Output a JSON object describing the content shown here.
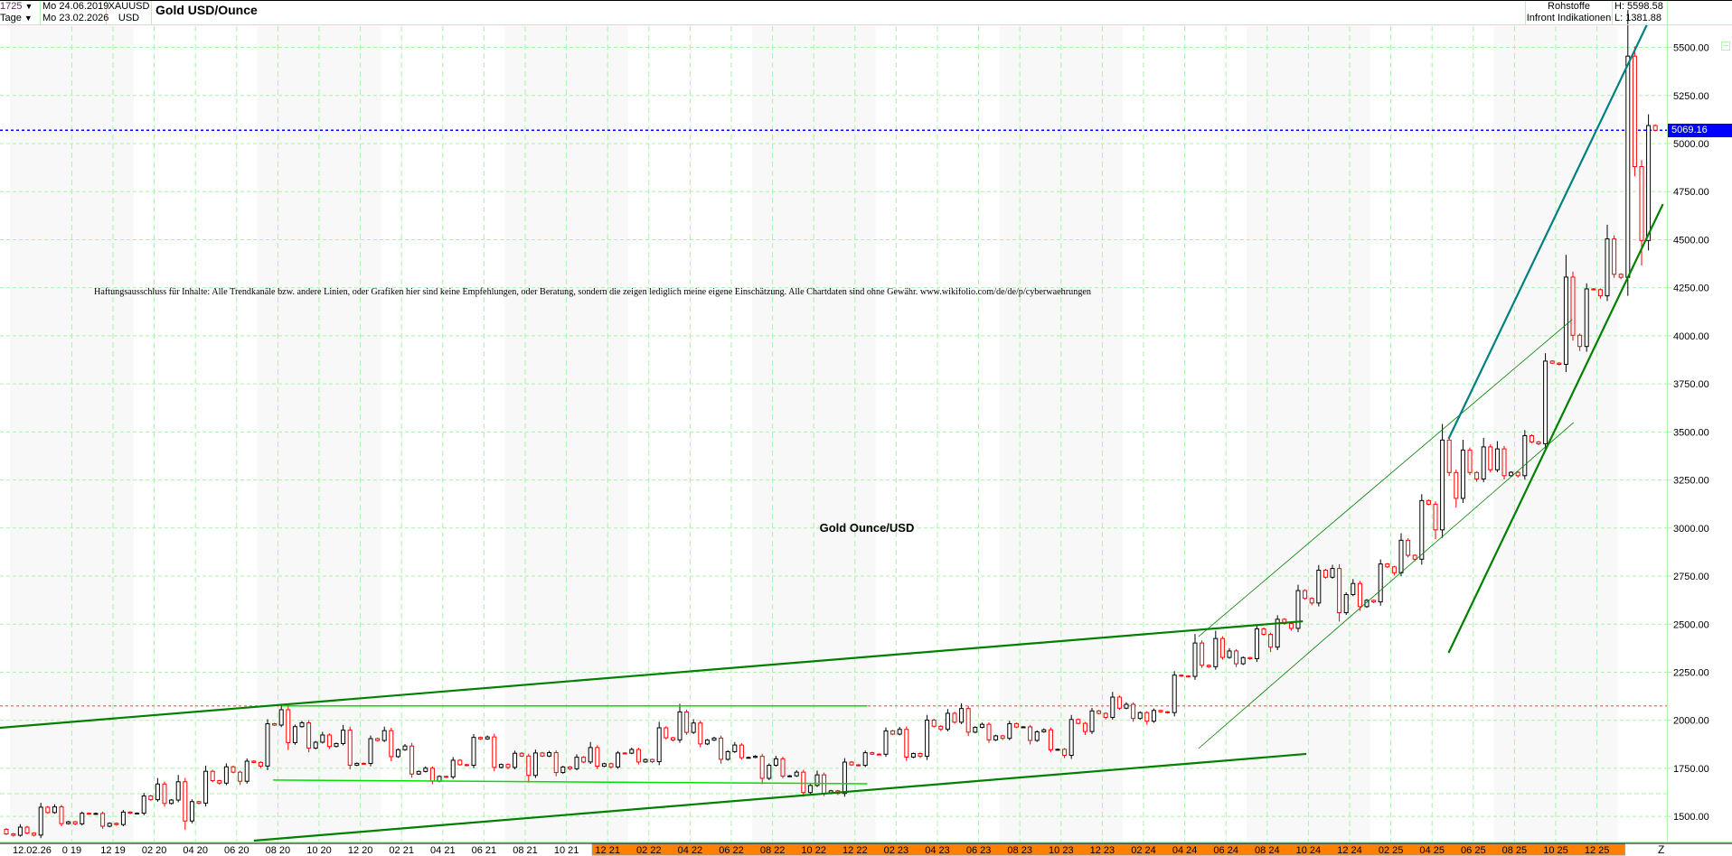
{
  "header": {
    "bar_count": "1725",
    "period": "Tage",
    "start_date": "Mo 24.06.2019",
    "end_date": "Mo 23.02.2026",
    "symbol": "XAUUSD",
    "currency": "USD",
    "title": "Gold USD/Ounce",
    "category": "Rohstoffe",
    "source": "Infront Indikationen",
    "high": "H: 5598.58",
    "low": "L: 1381.88"
  },
  "disclaimer": "Haftungsausschluss für Inhalte: Alle Trendkanäle bzw. andere Linien, oder Grafiken hier sind keine Empfehlungen, oder Beratung, sondern die zeigen lediglich meine eigene Einschätzung. Alle Chartdaten sind ohne Gewähr.  www.wikifolio.com/de/de/p/cyberwaehrungen",
  "chart_label": "Gold Ounce/USD",
  "last_price_tag": "5069.16",
  "x_axis_start_label": "12.02.26",
  "x_axis_end_label": "Z",
  "chart_data": {
    "type": "candlestick",
    "title": "Gold USD/Ounce",
    "ylim": [
      1381.88,
      5598.58
    ],
    "y_ticks": [
      "1500.00",
      "1750.00",
      "2000.00",
      "2250.00",
      "2500.00",
      "2750.00",
      "3000.00",
      "3250.00",
      "3500.00",
      "3750.00",
      "4000.00",
      "4250.00",
      "4500.00",
      "4750.00",
      "5000.00",
      "5250.00",
      "5500.00"
    ],
    "x_ticks": [
      {
        "date": "2019-10-01",
        "label": "0 19"
      },
      {
        "date": "2019-12-01",
        "label": "12 19"
      },
      {
        "date": "2020-02-01",
        "label": "02 20"
      },
      {
        "date": "2020-04-01",
        "label": "04 20"
      },
      {
        "date": "2020-06-01",
        "label": "06 20"
      },
      {
        "date": "2020-08-01",
        "label": "08 20"
      },
      {
        "date": "2020-10-01",
        "label": "10 20"
      },
      {
        "date": "2020-12-01",
        "label": "12 20"
      },
      {
        "date": "2021-02-01",
        "label": "02 21"
      },
      {
        "date": "2021-04-01",
        "label": "04 21"
      },
      {
        "date": "2021-06-01",
        "label": "06 21"
      },
      {
        "date": "2021-08-01",
        "label": "08 21"
      },
      {
        "date": "2021-10-01",
        "label": "10 21"
      },
      {
        "date": "2021-12-01",
        "label": "12 21"
      },
      {
        "date": "2022-02-01",
        "label": "02 22"
      },
      {
        "date": "2022-04-01",
        "label": "04 22"
      },
      {
        "date": "2022-06-01",
        "label": "06 22"
      },
      {
        "date": "2022-08-01",
        "label": "08 22"
      },
      {
        "date": "2022-10-01",
        "label": "10 22"
      },
      {
        "date": "2022-12-01",
        "label": "12 22"
      },
      {
        "date": "2023-02-01",
        "label": "02 23"
      },
      {
        "date": "2023-04-01",
        "label": "04 23"
      },
      {
        "date": "2023-06-01",
        "label": "06 23"
      },
      {
        "date": "2023-08-01",
        "label": "08 23"
      },
      {
        "date": "2023-10-01",
        "label": "10 23"
      },
      {
        "date": "2023-12-01",
        "label": "12 23"
      },
      {
        "date": "2024-02-01",
        "label": "02 24"
      },
      {
        "date": "2024-04-01",
        "label": "04 24"
      },
      {
        "date": "2024-06-01",
        "label": "06 24"
      },
      {
        "date": "2024-08-01",
        "label": "08 24"
      },
      {
        "date": "2024-10-01",
        "label": "10 24"
      },
      {
        "date": "2024-12-01",
        "label": "12 24"
      },
      {
        "date": "2025-02-01",
        "label": "02 25"
      },
      {
        "date": "2025-04-01",
        "label": "04 25"
      },
      {
        "date": "2025-06-01",
        "label": "06 25"
      },
      {
        "date": "2025-08-01",
        "label": "08 25"
      },
      {
        "date": "2025-10-01",
        "label": "10 25"
      },
      {
        "date": "2025-12-01",
        "label": "12 25"
      }
    ],
    "highlighted_x_range": [
      "2021-12-01",
      "2025-12-31"
    ],
    "grid": true,
    "colors": {
      "up": "#000000",
      "down": "#ff0000",
      "grid": "#a8f5a8",
      "band": "#f8f8f8",
      "trend": "#008000",
      "trend_light": "#00e000",
      "teal": "#008080",
      "last": "#0000ff",
      "resistance": "#f08080",
      "axis_highlight": "#ff8000"
    },
    "monthly_ohlc": [
      {
        "m": "2019-06",
        "o": 1400,
        "h": 1439,
        "l": 1382,
        "c": 1409
      },
      {
        "m": "2019-07",
        "o": 1409,
        "h": 1452,
        "l": 1400,
        "c": 1413
      },
      {
        "m": "2019-08",
        "o": 1413,
        "h": 1555,
        "l": 1400,
        "c": 1520
      },
      {
        "m": "2019-09",
        "o": 1520,
        "h": 1557,
        "l": 1460,
        "c": 1472
      },
      {
        "m": "2019-10",
        "o": 1472,
        "h": 1517,
        "l": 1459,
        "c": 1513
      },
      {
        "m": "2019-11",
        "o": 1513,
        "h": 1516,
        "l": 1445,
        "c": 1464
      },
      {
        "m": "2019-12",
        "o": 1464,
        "h": 1524,
        "l": 1456,
        "c": 1517
      },
      {
        "m": "2020-01",
        "o": 1517,
        "h": 1611,
        "l": 1517,
        "c": 1587
      },
      {
        "m": "2020-02",
        "o": 1587,
        "h": 1689,
        "l": 1563,
        "c": 1585
      },
      {
        "m": "2020-03",
        "o": 1585,
        "h": 1704,
        "l": 1451,
        "c": 1577
      },
      {
        "m": "2020-04",
        "o": 1577,
        "h": 1747,
        "l": 1567,
        "c": 1686
      },
      {
        "m": "2020-05",
        "o": 1686,
        "h": 1765,
        "l": 1670,
        "c": 1730
      },
      {
        "m": "2020-06",
        "o": 1730,
        "h": 1789,
        "l": 1671,
        "c": 1781
      },
      {
        "m": "2020-07",
        "o": 1781,
        "h": 1984,
        "l": 1757,
        "c": 1975
      },
      {
        "m": "2020-08",
        "o": 1975,
        "h": 2075,
        "l": 1863,
        "c": 1967
      },
      {
        "m": "2020-09",
        "o": 1967,
        "h": 1992,
        "l": 1848,
        "c": 1886
      },
      {
        "m": "2020-10",
        "o": 1886,
        "h": 1933,
        "l": 1860,
        "c": 1879
      },
      {
        "m": "2020-11",
        "o": 1879,
        "h": 1966,
        "l": 1764,
        "c": 1776
      },
      {
        "m": "2020-12",
        "o": 1776,
        "h": 1907,
        "l": 1775,
        "c": 1895
      },
      {
        "m": "2021-01",
        "o": 1895,
        "h": 1959,
        "l": 1802,
        "c": 1847
      },
      {
        "m": "2021-02",
        "o": 1847,
        "h": 1871,
        "l": 1717,
        "c": 1734
      },
      {
        "m": "2021-03",
        "o": 1734,
        "h": 1755,
        "l": 1677,
        "c": 1708
      },
      {
        "m": "2021-04",
        "o": 1708,
        "h": 1798,
        "l": 1705,
        "c": 1769
      },
      {
        "m": "2021-05",
        "o": 1769,
        "h": 1913,
        "l": 1765,
        "c": 1903
      },
      {
        "m": "2021-06",
        "o": 1903,
        "h": 1916,
        "l": 1751,
        "c": 1770
      },
      {
        "m": "2021-07",
        "o": 1770,
        "h": 1832,
        "l": 1751,
        "c": 1814
      },
      {
        "m": "2021-08",
        "o": 1814,
        "h": 1834,
        "l": 1688,
        "c": 1814
      },
      {
        "m": "2021-09",
        "o": 1814,
        "h": 1836,
        "l": 1721,
        "c": 1757
      },
      {
        "m": "2021-10",
        "o": 1757,
        "h": 1814,
        "l": 1746,
        "c": 1783
      },
      {
        "m": "2021-11",
        "o": 1783,
        "h": 1877,
        "l": 1758,
        "c": 1774
      },
      {
        "m": "2021-12",
        "o": 1774,
        "h": 1830,
        "l": 1753,
        "c": 1829
      },
      {
        "m": "2022-01",
        "o": 1829,
        "h": 1853,
        "l": 1780,
        "c": 1796
      },
      {
        "m": "2022-02",
        "o": 1796,
        "h": 1974,
        "l": 1782,
        "c": 1909
      },
      {
        "m": "2022-03",
        "o": 1909,
        "h": 2070,
        "l": 1895,
        "c": 1937
      },
      {
        "m": "2022-04",
        "o": 1937,
        "h": 1998,
        "l": 1872,
        "c": 1897
      },
      {
        "m": "2022-05",
        "o": 1897,
        "h": 1910,
        "l": 1787,
        "c": 1837
      },
      {
        "m": "2022-06",
        "o": 1837,
        "h": 1880,
        "l": 1805,
        "c": 1807
      },
      {
        "m": "2022-07",
        "o": 1807,
        "h": 1814,
        "l": 1681,
        "c": 1766
      },
      {
        "m": "2022-08",
        "o": 1766,
        "h": 1808,
        "l": 1709,
        "c": 1711
      },
      {
        "m": "2022-09",
        "o": 1711,
        "h": 1735,
        "l": 1615,
        "c": 1661
      },
      {
        "m": "2022-10",
        "o": 1661,
        "h": 1730,
        "l": 1617,
        "c": 1633
      },
      {
        "m": "2022-11",
        "o": 1633,
        "h": 1786,
        "l": 1616,
        "c": 1768
      },
      {
        "m": "2022-12",
        "o": 1768,
        "h": 1833,
        "l": 1765,
        "c": 1824
      },
      {
        "m": "2023-01",
        "o": 1824,
        "h": 1949,
        "l": 1823,
        "c": 1928
      },
      {
        "m": "2023-02",
        "o": 1928,
        "h": 1959,
        "l": 1804,
        "c": 1827
      },
      {
        "m": "2023-03",
        "o": 1827,
        "h": 2009,
        "l": 1809,
        "c": 1969
      },
      {
        "m": "2023-04",
        "o": 1969,
        "h": 2048,
        "l": 1949,
        "c": 1990
      },
      {
        "m": "2023-05",
        "o": 1990,
        "h": 2079,
        "l": 1932,
        "c": 1963
      },
      {
        "m": "2023-06",
        "o": 1963,
        "h": 1983,
        "l": 1893,
        "c": 1919
      },
      {
        "m": "2023-07",
        "o": 1919,
        "h": 1987,
        "l": 1903,
        "c": 1965
      },
      {
        "m": "2023-08",
        "o": 1965,
        "h": 1966,
        "l": 1884,
        "c": 1940
      },
      {
        "m": "2023-09",
        "o": 1940,
        "h": 1953,
        "l": 1846,
        "c": 1849
      },
      {
        "m": "2023-10",
        "o": 1849,
        "h": 2009,
        "l": 1810,
        "c": 1984
      },
      {
        "m": "2023-11",
        "o": 1984,
        "h": 2052,
        "l": 1931,
        "c": 2036
      },
      {
        "m": "2023-12",
        "o": 2036,
        "h": 2135,
        "l": 2010,
        "c": 2063
      },
      {
        "m": "2024-01",
        "o": 2063,
        "h": 2088,
        "l": 2002,
        "c": 2040
      },
      {
        "m": "2024-02",
        "o": 2040,
        "h": 2053,
        "l": 1984,
        "c": 2044
      },
      {
        "m": "2024-03",
        "o": 2044,
        "h": 2236,
        "l": 2039,
        "c": 2230
      },
      {
        "m": "2024-04",
        "o": 2230,
        "h": 2431,
        "l": 2228,
        "c": 2286
      },
      {
        "m": "2024-05",
        "o": 2286,
        "h": 2450,
        "l": 2277,
        "c": 2327
      },
      {
        "m": "2024-06",
        "o": 2327,
        "h": 2369,
        "l": 2286,
        "c": 2326
      },
      {
        "m": "2024-07",
        "o": 2326,
        "h": 2483,
        "l": 2319,
        "c": 2447
      },
      {
        "m": "2024-08",
        "o": 2447,
        "h": 2531,
        "l": 2364,
        "c": 2503
      },
      {
        "m": "2024-09",
        "o": 2503,
        "h": 2685,
        "l": 2472,
        "c": 2634
      },
      {
        "m": "2024-10",
        "o": 2634,
        "h": 2790,
        "l": 2604,
        "c": 2744
      },
      {
        "m": "2024-11",
        "o": 2744,
        "h": 2801,
        "l": 2536,
        "c": 2654
      },
      {
        "m": "2024-12",
        "o": 2654,
        "h": 2726,
        "l": 2583,
        "c": 2624
      },
      {
        "m": "2025-01",
        "o": 2624,
        "h": 2817,
        "l": 2614,
        "c": 2798
      },
      {
        "m": "2025-02",
        "o": 2798,
        "h": 2956,
        "l": 2760,
        "c": 2858
      },
      {
        "m": "2025-03",
        "o": 2858,
        "h": 3148,
        "l": 2833,
        "c": 3124
      },
      {
        "m": "2025-04",
        "o": 3124,
        "h": 3500,
        "l": 2957,
        "c": 3289
      },
      {
        "m": "2025-05",
        "o": 3289,
        "h": 3435,
        "l": 3121,
        "c": 3289
      },
      {
        "m": "2025-06",
        "o": 3289,
        "h": 3452,
        "l": 3247,
        "c": 3303
      },
      {
        "m": "2025-07",
        "o": 3303,
        "h": 3439,
        "l": 3268,
        "c": 3290
      },
      {
        "m": "2025-08",
        "o": 3290,
        "h": 3489,
        "l": 3268,
        "c": 3448
      },
      {
        "m": "2025-09",
        "o": 3448,
        "h": 3871,
        "l": 3436,
        "c": 3858
      },
      {
        "m": "2025-10",
        "o": 3858,
        "h": 4381,
        "l": 3850,
        "c": 4003
      },
      {
        "m": "2025-11",
        "o": 4003,
        "h": 4245,
        "l": 3930,
        "c": 4240
      },
      {
        "m": "2025-12",
        "o": 4240,
        "h": 4550,
        "l": 4200,
        "c": 4320
      },
      {
        "m": "2026-01",
        "o": 4320,
        "h": 5598.58,
        "l": 4300,
        "c": 4880
      },
      {
        "m": "2026-02",
        "o": 4880,
        "h": 5100,
        "l": 4400,
        "c": 5069.16
      }
    ],
    "trendlines": [
      {
        "kind": "thick",
        "color": "#008000",
        "from": [
          "2019-06-16",
          1961
        ],
        "to": [
          "2024-09-23",
          2515
        ]
      },
      {
        "kind": "thick",
        "color": "#008000",
        "from": [
          "2020-06-26",
          1374
        ],
        "to": [
          "2024-09-28",
          1825
        ]
      },
      {
        "kind": "thin",
        "color": "#008000",
        "from": [
          "2024-04-21",
          2435
        ],
        "to": [
          "2025-10-25",
          4085
        ]
      },
      {
        "kind": "thin",
        "color": "#008000",
        "from": [
          "2024-04-21",
          1853
        ],
        "to": [
          "2025-10-27",
          3549
        ]
      },
      {
        "kind": "thick",
        "color": "#008000",
        "from": [
          "2025-04-25",
          2351
        ],
        "to": [
          "2026-03-07",
          4685
        ]
      },
      {
        "kind": "thick",
        "color": "#008080",
        "from": [
          "2025-04-25",
          3464
        ],
        "to": [
          "2026-02-14",
          5620
        ]
      },
      {
        "kind": "light",
        "color": "#00e000",
        "from": [
          "2020-08-07",
          2075
        ],
        "to": [
          "2022-12-19",
          2075
        ]
      },
      {
        "kind": "light",
        "color": "#00e000",
        "from": [
          "2020-07-24",
          1689
        ],
        "to": [
          "2022-12-19",
          1670
        ]
      }
    ],
    "horizontal_levels": [
      {
        "price": 5069.16,
        "color": "#0000ff",
        "style": "dotted"
      },
      {
        "price": 2075,
        "color": "#f08080",
        "style": "dotted"
      },
      {
        "price": 1618,
        "color": "#a8f5a8",
        "style": "dashed"
      }
    ]
  }
}
